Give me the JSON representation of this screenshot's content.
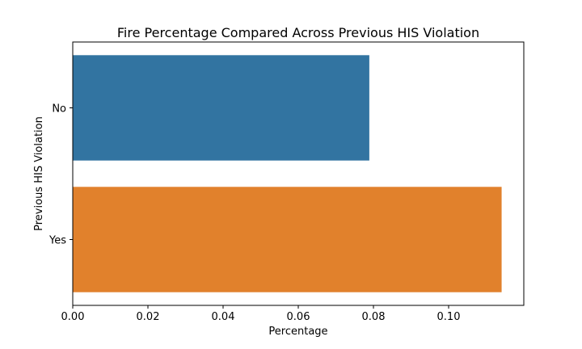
{
  "chart_data": {
    "type": "bar",
    "orientation": "horizontal",
    "title": "Fire Percentage Compared Across Previous HIS Violation",
    "xlabel": "Percentage",
    "ylabel": "Previous HIS Violation",
    "categories": [
      "No",
      "Yes"
    ],
    "values": [
      0.0789,
      0.1141
    ],
    "colors": [
      "#3274a1",
      "#e1812c"
    ],
    "xlim": [
      0,
      0.12
    ],
    "xticks": [
      0.0,
      0.02,
      0.04,
      0.06,
      0.08,
      0.1
    ],
    "xtick_labels": [
      "0.00",
      "0.02",
      "0.04",
      "0.06",
      "0.08",
      "0.10"
    ],
    "grid": false,
    "legend": "none"
  }
}
